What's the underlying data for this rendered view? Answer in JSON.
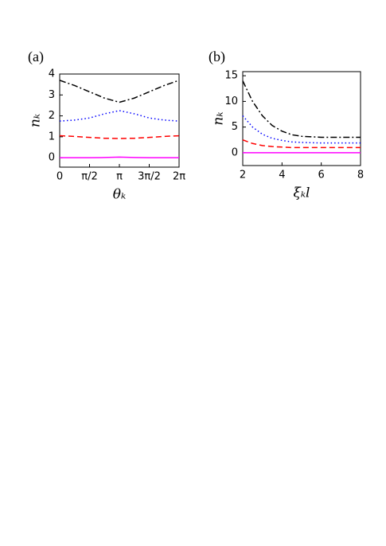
{
  "chart_data": [
    {
      "type": "line",
      "title": "(a)",
      "x_label": "θₖ",
      "y_label": "nₖ",
      "x": [
        0,
        0.785,
        1.571,
        2.356,
        3.142,
        3.927,
        4.712,
        5.498,
        6.283
      ],
      "xlim": [
        0,
        6.283
      ],
      "ylim": [
        -0.45,
        4
      ],
      "xticks": [
        0,
        {
          "value": 1.571,
          "label": "π/2"
        },
        {
          "value": 3.142,
          "label": "π"
        },
        {
          "value": 4.712,
          "label": "3π/2"
        },
        {
          "value": 6.283,
          "label": "2π"
        }
      ],
      "yticks": [
        0,
        1,
        2,
        3,
        4
      ],
      "series": [
        {
          "color": "#000000",
          "style": "dashdot",
          "values": [
            3.7,
            3.45,
            3.15,
            2.85,
            2.65,
            2.85,
            3.15,
            3.45,
            3.7
          ]
        },
        {
          "color": "#0000ff",
          "style": "dotted",
          "values": [
            1.75,
            1.8,
            1.9,
            2.1,
            2.25,
            2.1,
            1.9,
            1.8,
            1.75
          ]
        },
        {
          "color": "#ff0000",
          "style": "dashed",
          "values": [
            1.05,
            1.02,
            0.97,
            0.93,
            0.92,
            0.93,
            0.97,
            1.02,
            1.05
          ]
        },
        {
          "color": "#ff00ff",
          "style": "solid",
          "values": [
            0,
            0,
            0,
            0.01,
            0.03,
            0.01,
            0,
            0,
            0
          ]
        }
      ]
    },
    {
      "type": "line",
      "title": "(b)",
      "x_label": "ξₖl",
      "y_label": "nₖ",
      "x": [
        2,
        2.5,
        3,
        3.5,
        4,
        4.5,
        5,
        6,
        7,
        8
      ],
      "xlim": [
        2,
        8
      ],
      "ylim": [
        -2.5,
        15.8
      ],
      "xticks": [
        2,
        4,
        6,
        8
      ],
      "yticks": [
        0,
        5,
        10,
        15
      ],
      "series": [
        {
          "color": "#000000",
          "style": "dashdot",
          "values": [
            14,
            10,
            7.2,
            5.3,
            4.2,
            3.5,
            3.2,
            3.0,
            3.0,
            3.0
          ]
        },
        {
          "color": "#0000ff",
          "style": "dotted",
          "values": [
            7.2,
            5.0,
            3.6,
            2.8,
            2.4,
            2.1,
            2.0,
            1.9,
            1.9,
            1.9
          ]
        },
        {
          "color": "#ff0000",
          "style": "dashed",
          "values": [
            2.5,
            1.8,
            1.4,
            1.2,
            1.1,
            1.0,
            1.0,
            1.0,
            1.0,
            1.0
          ]
        },
        {
          "color": "#ff00ff",
          "style": "solid",
          "values": [
            0,
            0,
            0,
            0,
            0,
            0,
            0,
            0,
            0,
            0
          ]
        }
      ]
    }
  ]
}
